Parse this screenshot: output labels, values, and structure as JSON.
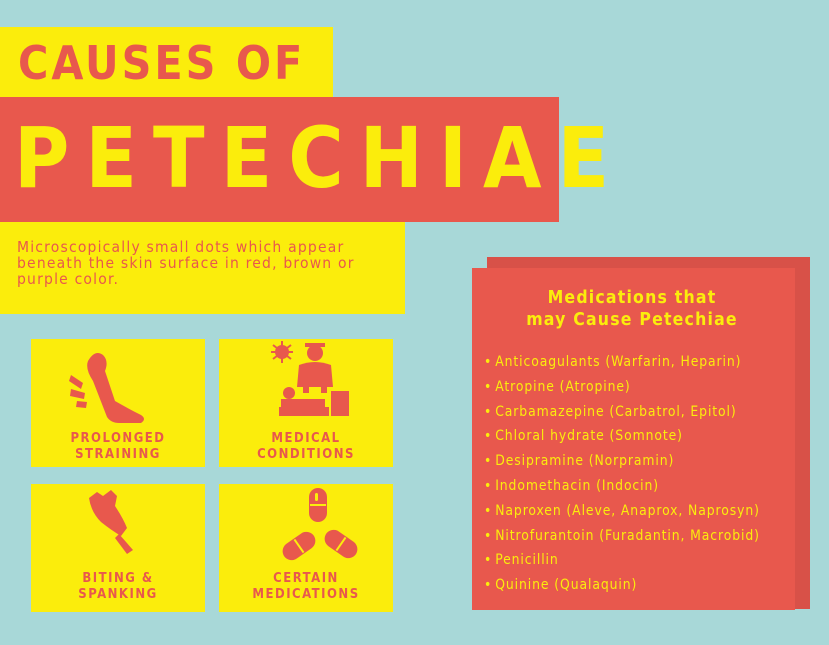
{
  "header": {
    "line1": "CAUSES OF",
    "line2": "PETECHIAE"
  },
  "description": "Microscopically small dots which appear beneath the skin surface in red, brown or purple color.",
  "causes": [
    {
      "label": "PROLONGED\nSTRAINING",
      "icon": "straining-leg-icon"
    },
    {
      "label": "MEDICAL\nCONDITIONS",
      "icon": "medical-exam-icon"
    },
    {
      "label": "BITING &\nSPANKING",
      "icon": "biting-icon"
    },
    {
      "label": "CERTAIN\nMEDICATIONS",
      "icon": "pills-icon"
    }
  ],
  "medications": {
    "title": "Medications that\nmay Cause Petechiae",
    "bullet": "•",
    "items": [
      "Anticoagulants (Warfarin, Heparin)",
      "Atropine (Atropine)",
      "Carbamazepine (Carbatrol, Epitol)",
      "Chloral hydrate (Somnote)",
      "Desipramine (Norpramin)",
      "Indomethacin (Indocin)",
      "Naproxen (Aleve, Anaprox, Naprosyn)",
      "Nitrofurantoin (Furadantin, Macrobid)",
      "Penicillin",
      "Quinine (Qualaquin)"
    ]
  },
  "colors": {
    "background": "#a8d8d8",
    "yellow": "#fbed0c",
    "red": "#e8584d",
    "shadow": "#d85148"
  }
}
